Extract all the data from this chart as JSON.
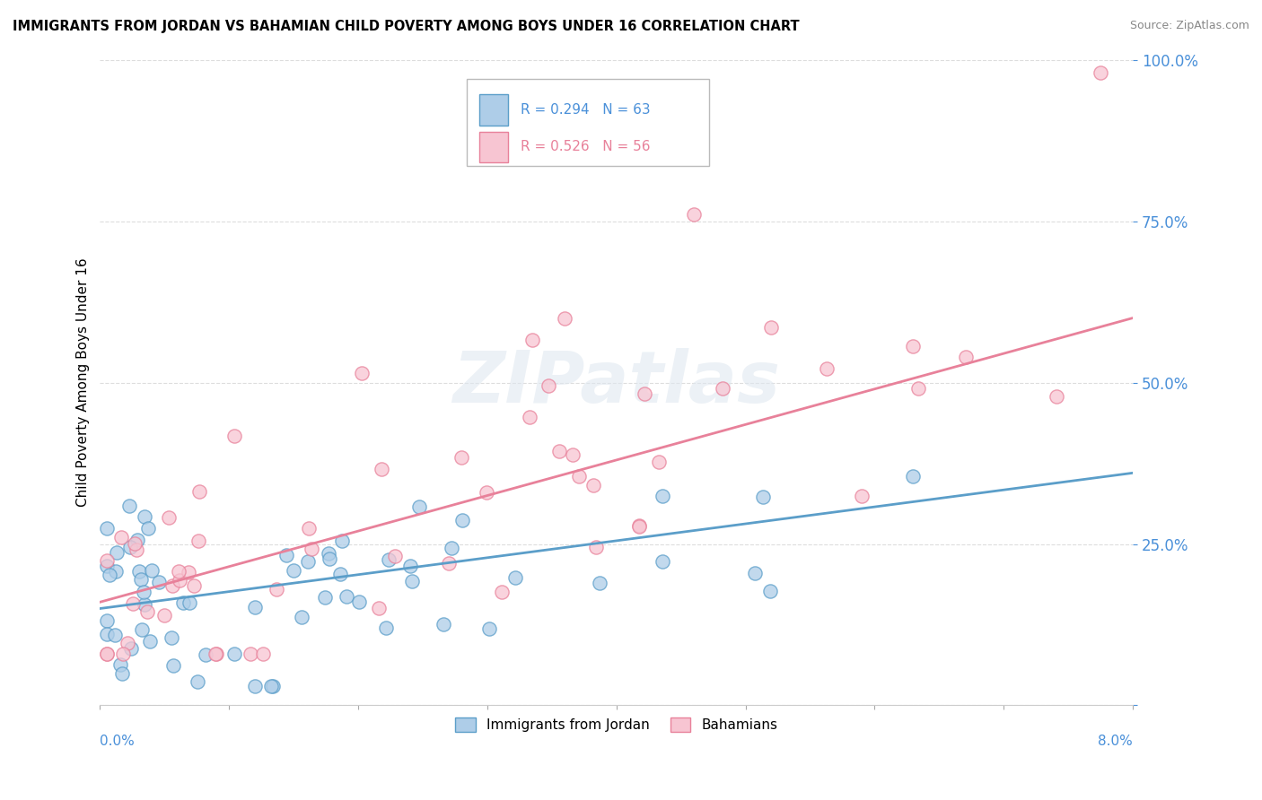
{
  "title": "IMMIGRANTS FROM JORDAN VS BAHAMIAN CHILD POVERTY AMONG BOYS UNDER 16 CORRELATION CHART",
  "source": "Source: ZipAtlas.com",
  "ylabel": "Child Poverty Among Boys Under 16",
  "xmin": 0.0,
  "xmax": 8.0,
  "ymin": 0.0,
  "ymax": 100.0,
  "yticks": [
    0,
    25,
    50,
    75,
    100
  ],
  "legend1_r": "0.294",
  "legend1_n": "63",
  "legend2_r": "0.526",
  "legend2_n": "56",
  "color_blue_fill": "#aecde8",
  "color_blue_edge": "#5b9ec9",
  "color_pink_fill": "#f7c5d2",
  "color_pink_edge": "#e8819a",
  "color_blue_line": "#5b9ec9",
  "color_pink_line": "#e8819a",
  "background_color": "#ffffff",
  "grid_color": "#dddddd",
  "watermark": "ZIPatlas",
  "blue_trend_y0": 15.0,
  "blue_trend_y1": 36.0,
  "pink_trend_y0": 16.0,
  "pink_trend_y1": 60.0
}
